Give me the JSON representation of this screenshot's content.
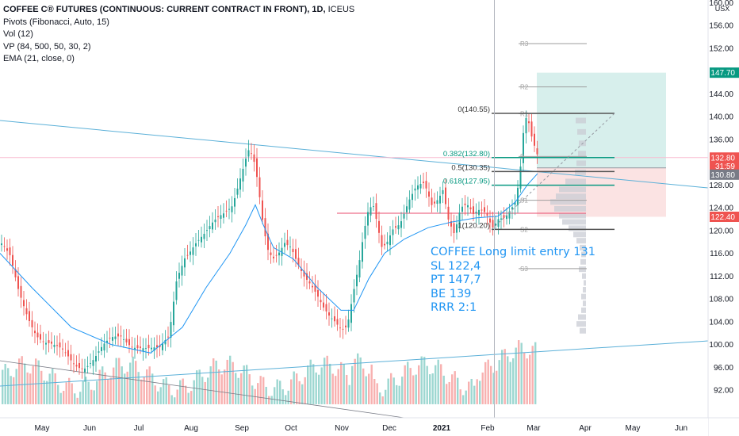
{
  "symbol": {
    "title": "COFFEE C® FUTURES (CONTINUOUS: CURRENT CONTRACT IN FRONT), 1D,",
    "exchange": "ICEUS",
    "currency": "USX"
  },
  "indicators": [
    "Pivots (Fibonacci, Auto, 15)",
    "Vol (12)",
    "VP (84, 500, 50, 30, 2)",
    "EMA (21, close, 0)"
  ],
  "note_lines": [
    "COFFEE Long limit entry 131",
    "SL 122,4",
    "PT 147,7",
    "BE 139",
    "RRR 2:1"
  ],
  "colors": {
    "up": "#26a69a",
    "down": "#ef5350",
    "ema": "#2196f3",
    "trendline": "#5bb0d8",
    "target_zone": "#d7efec",
    "stop_zone": "#fbe3e3",
    "fib_teal": "#089981",
    "pivot": "#9e9e9e"
  },
  "price_tags": [
    {
      "label": "147.70",
      "value": 147.7,
      "color": "#089981"
    },
    {
      "label": "132.80",
      "value": 132.8,
      "color": "#ef5350"
    },
    {
      "label": "31:59",
      "value": 131.3,
      "color": "#ef5350"
    },
    {
      "label": "130.80",
      "value": 129.8,
      "color": "#787b86"
    },
    {
      "label": "122.40",
      "value": 122.4,
      "color": "#ef5350"
    }
  ],
  "chart_data": {
    "type": "candlestick",
    "y_axis": {
      "ticks": [
        "160.00",
        "156.00",
        "152.00",
        "148.00",
        "144.00",
        "140.00",
        "136.00",
        "132.00",
        "128.00",
        "124.00",
        "120.00",
        "116.00",
        "112.00",
        "108.00",
        "104.00",
        "100.00",
        "96.00",
        "92.00"
      ],
      "ylim": [
        89.5,
        160
      ]
    },
    "x_axis": {
      "ticks": [
        "May",
        "Jun",
        "Jul",
        "Aug",
        "Sep",
        "Oct",
        "Nov",
        "Dec",
        "2021",
        "Feb",
        "Mar",
        "Apr",
        "May",
        "Jun"
      ]
    },
    "close_path": [
      [
        0,
        117
      ],
      [
        12,
        115
      ],
      [
        22,
        110
      ],
      [
        33,
        106
      ],
      [
        45,
        102
      ],
      [
        55,
        100
      ],
      [
        68,
        99
      ],
      [
        80,
        98.5
      ],
      [
        93,
        97
      ],
      [
        105,
        96.5
      ],
      [
        118,
        97.5
      ],
      [
        128,
        99
      ],
      [
        140,
        100.5
      ],
      [
        152,
        101.5
      ],
      [
        164,
        100.5
      ],
      [
        176,
        100
      ],
      [
        188,
        99
      ],
      [
        200,
        98.5
      ],
      [
        212,
        101
      ],
      [
        222,
        112
      ],
      [
        232,
        116
      ],
      [
        245,
        118
      ],
      [
        258,
        119
      ],
      [
        270,
        121
      ],
      [
        282,
        123
      ],
      [
        292,
        125
      ],
      [
        302,
        130
      ],
      [
        312,
        134.5
      ],
      [
        318,
        133
      ],
      [
        324,
        128
      ],
      [
        330,
        121
      ],
      [
        336,
        116
      ],
      [
        343,
        114.5
      ],
      [
        350,
        116
      ],
      [
        358,
        118.5
      ],
      [
        366,
        118
      ],
      [
        374,
        115
      ],
      [
        382,
        112
      ],
      [
        390,
        110
      ],
      [
        398,
        108
      ],
      [
        406,
        106
      ],
      [
        414,
        105
      ],
      [
        422,
        104.5
      ],
      [
        430,
        103.5
      ],
      [
        437,
        104
      ],
      [
        444,
        109
      ],
      [
        452,
        114
      ],
      [
        458,
        119
      ],
      [
        464,
        123
      ],
      [
        470,
        123.5
      ],
      [
        476,
        120
      ],
      [
        480,
        117
      ],
      [
        486,
        118
      ],
      [
        494,
        121
      ],
      [
        504,
        122
      ],
      [
        514,
        125
      ],
      [
        524,
        127
      ],
      [
        534,
        127.5
      ],
      [
        544,
        124
      ],
      [
        552,
        126
      ],
      [
        558,
        128
      ],
      [
        564,
        123
      ],
      [
        572,
        120
      ],
      [
        580,
        124
      ],
      [
        588,
        124
      ],
      [
        596,
        122
      ],
      [
        604,
        123
      ],
      [
        612,
        123
      ],
      [
        620,
        121
      ],
      [
        628,
        123
      ],
      [
        636,
        123
      ],
      [
        644,
        124
      ],
      [
        650,
        125
      ],
      [
        656,
        131
      ],
      [
        660,
        138
      ],
      [
        663,
        139
      ],
      [
        666,
        138
      ],
      [
        669,
        136
      ],
      [
        674,
        134
      ],
      [
        677,
        133
      ]
    ],
    "ema_path": [
      [
        0,
        116
      ],
      [
        40,
        110
      ],
      [
        90,
        103
      ],
      [
        140,
        100
      ],
      [
        190,
        98.5
      ],
      [
        230,
        103
      ],
      [
        260,
        110
      ],
      [
        290,
        116
      ],
      [
        310,
        121
      ],
      [
        322,
        124.5
      ],
      [
        332,
        121
      ],
      [
        345,
        117
      ],
      [
        370,
        115
      ],
      [
        400,
        110
      ],
      [
        430,
        106
      ],
      [
        446,
        106
      ],
      [
        465,
        111.5
      ],
      [
        485,
        116
      ],
      [
        510,
        118.5
      ],
      [
        540,
        120.5
      ],
      [
        570,
        121.5
      ],
      [
        600,
        122.2
      ],
      [
        628,
        122.5
      ],
      [
        650,
        125
      ],
      [
        665,
        128
      ],
      [
        678,
        130
      ]
    ],
    "volume": {
      "axis_min": 89.5,
      "scale_max": 105
    }
  },
  "pivot_lines": [
    {
      "label": "R3",
      "value": 152.8,
      "labeled": true
    },
    {
      "label": "R2",
      "value": 145.2,
      "labeled": true
    },
    {
      "label": "R1",
      "value": 140.5,
      "labeled": true
    },
    {
      "label": "P",
      "value": 133.0,
      "labeled": true
    },
    {
      "label": "S1",
      "value": 125.3,
      "labeled": true
    },
    {
      "label": "S2",
      "value": 120.2,
      "labeled": true
    },
    {
      "label": "S3",
      "value": 113.3,
      "labeled": true
    }
  ],
  "fib_levels": [
    {
      "label": "0(140.55)",
      "value": 140.55,
      "teal": false
    },
    {
      "label": "0.382(132.80)",
      "value": 132.8,
      "teal": true
    },
    {
      "label": "0.5(130.35)",
      "value": 130.35,
      "teal": false
    },
    {
      "label": "0.618(127.95)",
      "value": 127.95,
      "teal": true
    },
    {
      "label": "1(120.20)",
      "value": 120.2,
      "teal": false
    }
  ],
  "position": {
    "entry": 131,
    "stop": 122.4,
    "target": 147.7
  }
}
